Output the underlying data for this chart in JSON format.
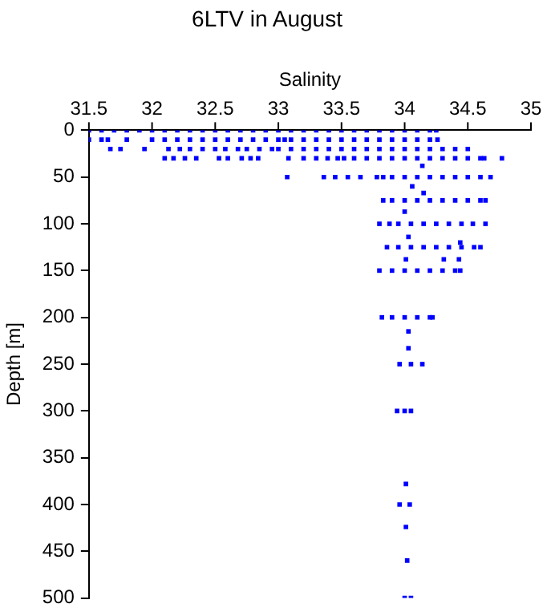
{
  "chart_data": {
    "type": "scatter",
    "title": "6LTV in August",
    "xlabel": "Salinity",
    "ylabel": "Depth [m]",
    "xlim": [
      31.5,
      35
    ],
    "xticks": [
      31.5,
      32,
      32.5,
      33,
      33.5,
      34,
      34.5,
      35
    ],
    "ylim": [
      500,
      0
    ],
    "yticks": [
      0,
      50,
      100,
      150,
      200,
      250,
      300,
      350,
      400,
      450,
      500
    ],
    "marker": "square",
    "legend": false,
    "series": [
      {
        "color": "#0000ff",
        "x": [
          31.5,
          31.6,
          31.7,
          31.8,
          31.9,
          32,
          32.1,
          32.2,
          32.3,
          32.4,
          32.5,
          32.6,
          32.7,
          32.8,
          32.9,
          33,
          33.1,
          33.2,
          33.3,
          33.4,
          33.5,
          33.6,
          33.7,
          33.8,
          33.9,
          34,
          34.1,
          34.2,
          34.25
        ],
        "values": [
          0,
          0,
          0,
          0,
          0,
          0,
          0,
          0,
          0,
          0,
          0,
          0,
          0,
          0,
          0,
          0,
          0,
          0,
          0,
          0,
          0,
          0,
          0,
          0,
          0,
          0,
          0,
          0,
          0
        ]
      },
      {
        "color": "#0000ff",
        "x": [
          31.5,
          31.6,
          31.65,
          31.8,
          32,
          32.1,
          32.2,
          32.3,
          32.4,
          32.5,
          32.6,
          32.7,
          32.8,
          32.9,
          33,
          33.05,
          33.1,
          33.2,
          33.3,
          33.4,
          33.5,
          33.6,
          33.7,
          33.8,
          33.9,
          34,
          34.1,
          34.2,
          34.26
        ],
        "values": [
          10,
          10,
          10,
          10,
          10,
          10,
          10,
          10,
          10,
          10,
          10,
          10,
          10,
          10,
          10,
          10,
          10,
          10,
          10,
          10,
          10,
          10,
          10,
          10,
          10,
          10,
          10,
          10,
          10
        ]
      },
      {
        "color": "#0000ff",
        "x": [
          31.67,
          31.75,
          31.94,
          32.13,
          32.22,
          32.3,
          32.4,
          32.5,
          32.58,
          32.68,
          32.75,
          32.85,
          32.95,
          33,
          33.1,
          33.2,
          33.3,
          33.4,
          33.5,
          33.6,
          33.7,
          33.8,
          33.9,
          34,
          34.1,
          34.2,
          34.3,
          34.4,
          34.5
        ],
        "values": [
          20,
          20,
          20,
          20,
          20,
          20,
          20,
          20,
          20,
          20,
          20,
          20,
          20,
          20,
          20,
          20,
          20,
          20,
          20,
          20,
          20,
          20,
          20,
          20,
          20,
          20,
          20,
          20,
          20
        ]
      },
      {
        "color": "#0000ff",
        "x": [
          32.1,
          32.17,
          32.26,
          32.35,
          32.53,
          32.6,
          32.71,
          32.78,
          32.84,
          33.08,
          33.2,
          33.3,
          33.39,
          33.47,
          33.52,
          33.6,
          33.7,
          33.8,
          33.9,
          34,
          34.1,
          34.2,
          34.3,
          34.4,
          34.5,
          34.6,
          34.63,
          34.77,
          34.14
        ],
        "values": [
          30,
          30,
          30,
          30,
          30,
          30,
          30,
          30,
          30,
          30,
          30,
          30,
          30,
          30,
          30,
          30,
          30,
          30,
          30,
          30,
          30,
          30,
          30,
          30,
          30,
          30,
          30,
          30,
          38
        ]
      },
      {
        "color": "#0000ff",
        "x": [
          33.07,
          33.36,
          33.45,
          33.55,
          33.65,
          33.78,
          33.83,
          33.9,
          34,
          34.1,
          34.2,
          34.3,
          34.4,
          34.5,
          34.6,
          34.68,
          34.06,
          34.15
        ],
        "values": [
          50,
          50,
          50,
          50,
          50,
          50,
          50,
          50,
          50,
          50,
          50,
          50,
          50,
          50,
          50,
          50,
          60,
          67
        ]
      },
      {
        "color": "#0000ff",
        "x": [
          33.83,
          33.9,
          34,
          34.1,
          34.2,
          34.3,
          34.4,
          34.5,
          34.6,
          34.64,
          34
        ],
        "values": [
          75,
          75,
          75,
          75,
          75,
          75,
          75,
          75,
          75,
          75,
          87
        ]
      },
      {
        "color": "#0000ff",
        "x": [
          33.8,
          33.88,
          33.95,
          34.05,
          34.15,
          34.25,
          34.35,
          34.45,
          34.54,
          34.64,
          34.03,
          34.44
        ],
        "values": [
          100,
          100,
          100,
          100,
          100,
          100,
          100,
          100,
          100,
          100,
          114,
          120
        ]
      },
      {
        "color": "#0000ff",
        "x": [
          33.86,
          33.95,
          34.05,
          34.15,
          34.25,
          34.35,
          34.45,
          34.55,
          34.6,
          34.01,
          34.31,
          34.43
        ],
        "values": [
          125,
          125,
          125,
          125,
          125,
          125,
          125,
          125,
          125,
          138,
          138,
          138
        ]
      },
      {
        "color": "#0000ff",
        "x": [
          33.8,
          33.9,
          34,
          34.1,
          34.2,
          34.3,
          34.4,
          34.44
        ],
        "values": [
          150,
          150,
          150,
          150,
          150,
          150,
          150,
          150
        ]
      },
      {
        "color": "#0000ff",
        "x": [
          33.82,
          33.9,
          34,
          34.1,
          34.2,
          34.22,
          34.03,
          34.03
        ],
        "values": [
          200,
          200,
          200,
          200,
          200,
          200,
          215,
          233
        ]
      },
      {
        "color": "#0000ff",
        "x": [
          33.96,
          34.05,
          34.14,
          33.94,
          34,
          34.05
        ],
        "values": [
          250,
          250,
          250,
          300,
          300,
          300
        ]
      },
      {
        "color": "#0000ff",
        "x": [
          34.01,
          33.96,
          34.04,
          34.01,
          34.02,
          34,
          34.05
        ],
        "values": [
          378,
          400,
          400,
          424,
          460,
          500,
          500
        ]
      }
    ]
  }
}
